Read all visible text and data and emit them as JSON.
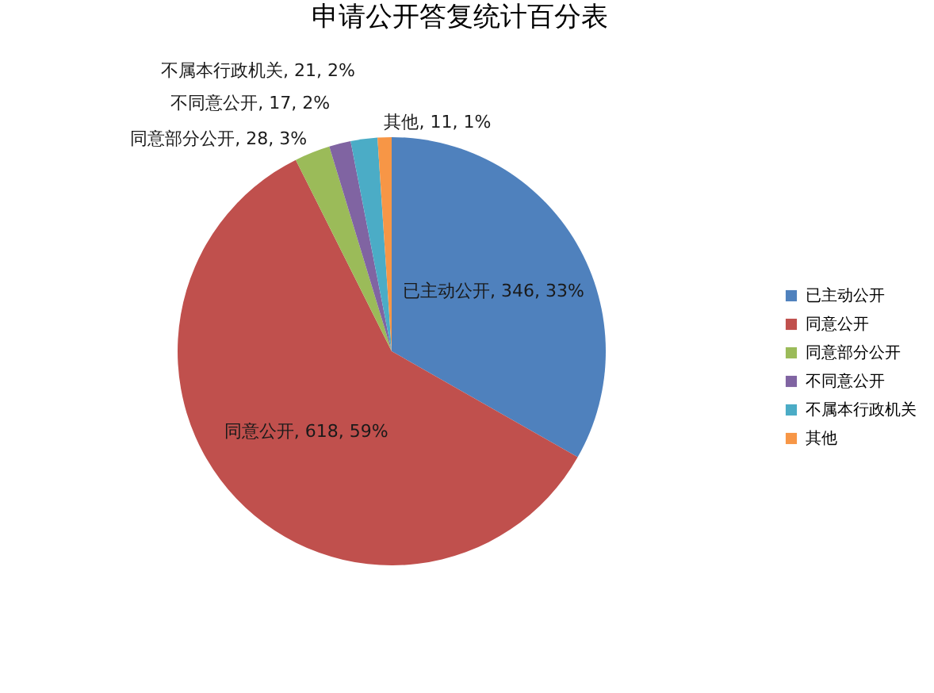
{
  "chart_data": {
    "type": "pie",
    "title": "申请公开答复统计百分表",
    "categories": [
      "已主动公开",
      "同意公开",
      "同意部分公开",
      "不同意公开",
      "不属本行政机关",
      "其他"
    ],
    "values": [
      346,
      618,
      28,
      17,
      21,
      11
    ],
    "colors": [
      "#4f81bd",
      "#c0504d",
      "#9bbb59",
      "#8064a2",
      "#4bacc6",
      "#f79646"
    ],
    "value_labels": [
      "已主动公开, 346, 33%",
      "同意公开, 618, 59%",
      "同意部分公开, 28, 3%",
      "不同意公开, 17, 2%",
      "不属本行政机关, 21, 2%",
      "其他, 11, 1%"
    ],
    "legend": "right"
  }
}
